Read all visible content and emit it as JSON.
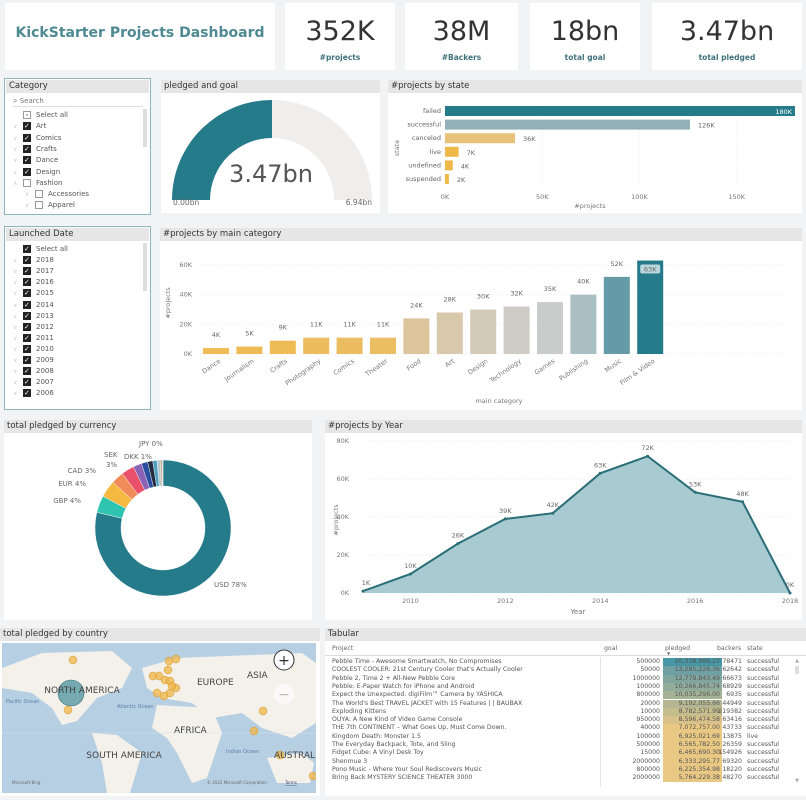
{
  "title": "KickStarter Projects Dashboard",
  "kpis": [
    {
      "value": "352K",
      "label": "#projects"
    },
    {
      "value": "38M",
      "label": "#Backers"
    },
    {
      "value": "18bn",
      "label": "total goal"
    },
    {
      "value": "3.47bn",
      "label": "total pledged"
    }
  ],
  "category_slicer": {
    "title": "Category",
    "search_placeholder": "Search",
    "items": [
      {
        "label": "Select all",
        "state": "partial"
      },
      {
        "label": "Art",
        "state": "checked"
      },
      {
        "label": "Comics",
        "state": "checked"
      },
      {
        "label": "Crafts",
        "state": "checked"
      },
      {
        "label": "Dance",
        "state": "checked"
      },
      {
        "label": "Design",
        "state": "checked"
      },
      {
        "label": "Fashion",
        "state": "unchecked"
      },
      {
        "label": "Accessories",
        "state": "unchecked"
      },
      {
        "label": "Apparel",
        "state": "unchecked"
      }
    ]
  },
  "date_slicer": {
    "title": "Launched Date",
    "items": [
      "Select all",
      "2018",
      "2017",
      "2016",
      "2015",
      "2014",
      "2013",
      "2012",
      "2011",
      "2010",
      "2009",
      "2008",
      "2007",
      "2006"
    ]
  },
  "gauge": {
    "title": "pledged and goal",
    "value_label": "3.47bn",
    "min_label": "0.00bn",
    "max_label": "6.94bn",
    "value": 3.47,
    "min": 0,
    "max": 6.94,
    "fill_color": "#267b8a",
    "track_color": "#efeeec"
  },
  "chart_data": [
    {
      "id": "state",
      "type": "bar",
      "orientation": "horizontal",
      "title": "#projects by state",
      "ylabel": "state",
      "xlabel": "#projects",
      "categories": [
        "failed",
        "successful",
        "canceled",
        "live",
        "undefined",
        "suspended"
      ],
      "values": [
        180,
        126,
        36,
        7,
        4,
        2
      ],
      "data_labels": [
        "180K",
        "126K",
        "36K",
        "7K",
        "4K",
        "2K"
      ],
      "colors": [
        "#267b8a",
        "#93b0b6",
        "#e9c27a",
        "#efb94a",
        "#efb94a",
        "#efb94a"
      ],
      "xticks": [
        "0K",
        "50K",
        "100K",
        "150K"
      ],
      "xlim": [
        0,
        180
      ],
      "unit": "K"
    },
    {
      "id": "main_category",
      "type": "bar",
      "title": "#projects by main category",
      "xlabel": "main category",
      "ylabel": "#projects",
      "categories": [
        "Dance",
        "Journalism",
        "Crafts",
        "Photography",
        "Comics",
        "Theater",
        "Food",
        "Art",
        "Design",
        "Technology",
        "Games",
        "Publishing",
        "Music",
        "Film & Video"
      ],
      "values": [
        4,
        5,
        9,
        11,
        11,
        11,
        24,
        28,
        30,
        32,
        35,
        40,
        52,
        63
      ],
      "data_labels": [
        "4K",
        "5K",
        "9K",
        "11K",
        "11K",
        "11K",
        "24K",
        "28K",
        "30K",
        "32K",
        "35K",
        "40K",
        "52K",
        "63K"
      ],
      "colors": [
        "#efbb55",
        "#efbb55",
        "#efbb55",
        "#edbc5c",
        "#ecbd60",
        "#ecbe62",
        "#dcc49c",
        "#d8c8ac",
        "#d4cab8",
        "#cfccc6",
        "#c8cccb",
        "#aabfc4",
        "#649ba6",
        "#267b8a"
      ],
      "yticks": [
        "0K",
        "20K",
        "40K",
        "60K"
      ],
      "ylim": [
        0,
        63
      ],
      "grid": true
    },
    {
      "id": "currency",
      "type": "pie",
      "donut": true,
      "title": "total pledged by currency",
      "slices": [
        {
          "name": "USD",
          "label": "USD 78%",
          "value": 78,
          "color": "#267b8a"
        },
        {
          "name": "GBP",
          "label": "GBP 4%",
          "value": 4,
          "color": "#2ec4b0"
        },
        {
          "name": "EUR",
          "label": "EUR 4%",
          "value": 4,
          "color": "#f5b841"
        },
        {
          "name": "CAD",
          "label": "CAD 3%",
          "value": 3,
          "color": "#f28b5a"
        },
        {
          "name": "SEK",
          "label": "SEK 3%",
          "value": 3,
          "color": "#e9516a"
        },
        {
          "name": "",
          "value": 2,
          "color": "#8a62b6"
        },
        {
          "name": "DKK",
          "label": "DKK 1%",
          "value": 1.5,
          "color": "#2a4fa0"
        },
        {
          "name": "",
          "value": 1.2,
          "color": "#232c3f"
        },
        {
          "name": "",
          "value": 1,
          "color": "#4e9fbe"
        },
        {
          "name": "",
          "value": 0.8,
          "color": "#b8c8cc"
        },
        {
          "name": "JPY",
          "label": "JPY 0%",
          "value": 0.3,
          "color": "#a06a3a"
        },
        {
          "name": "",
          "value": 0.3,
          "color": "#dddddd"
        }
      ]
    },
    {
      "id": "year",
      "type": "area",
      "title": "#projects by Year",
      "xlabel": "Year",
      "ylabel": "#projects",
      "x": [
        2009,
        2010,
        2011,
        2012,
        2013,
        2014,
        2015,
        2016,
        2017,
        2018
      ],
      "values": [
        1,
        10,
        26,
        39,
        42,
        63,
        72,
        53,
        48,
        0
      ],
      "data_labels": [
        "1K",
        "10K",
        "26K",
        "39K",
        "42K",
        "63K",
        "72K",
        "53K",
        "48K",
        "0K"
      ],
      "xticks": [
        "2010",
        "2012",
        "2014",
        "2016",
        "2018"
      ],
      "yticks": [
        "0K",
        "20K",
        "40K",
        "60K",
        "80K"
      ],
      "ylim": [
        0,
        80
      ],
      "xlim": [
        2009,
        2018
      ],
      "line_color": "#2a6e77",
      "fill_color": "#a8cbd1",
      "grid": true
    }
  ],
  "map": {
    "title": "total pledged by country",
    "labels": [
      "NORTH AMERICA",
      "EUROPE",
      "ASIA",
      "AFRICA",
      "SOUTH AMERICA",
      "AUSTRAL"
    ],
    "ocean_labels": [
      "Pacific Ocean",
      "Atlantic Ocean",
      "Indian Ocean"
    ],
    "attribution": "© 2022 Microsoft Corporation",
    "terms": "Terms",
    "brand": "Microsoft Bing",
    "zoom_in": "+",
    "zoom_out": "−",
    "bubble_color": "#f0b445",
    "main_bubble_color": "#5e9ea6"
  },
  "table": {
    "title": "Tabular",
    "columns": [
      "Project",
      "goal",
      "pledged",
      "backers",
      "state"
    ],
    "sort_indicator": "▼",
    "rows": [
      [
        "Pebble Time - Awesome Smartwatch, No Compromises",
        "500000",
        "20,338,986.27",
        "78471",
        "successful"
      ],
      [
        "COOLEST COOLER: 21st Century Cooler that's Actually Cooler",
        "50000",
        "13,285,226.36",
        "62642",
        "successful"
      ],
      [
        "Pebble 2, Time 2 + All-New Pebble Core",
        "1000000",
        "12,779,843.49",
        "66673",
        "successful"
      ],
      [
        "Pebble: E-Paper Watch for iPhone and Android",
        "100000",
        "10,266,845.74",
        "68929",
        "successful"
      ],
      [
        "Expect the Unexpected. digiFilm™ Camera by YASHICA",
        "800000",
        "10,035,296.00",
        "6935",
        "successful"
      ],
      [
        "The World's Best TRAVEL JACKET with 15 Features | | BAUBAX",
        "20000",
        "9,192,055.66",
        "44949",
        "successful"
      ],
      [
        "Exploding Kittens",
        "10000",
        "8,782,571.99",
        "219382",
        "successful"
      ],
      [
        "OUYA: A New Kind of Video Game Console",
        "950000",
        "8,596,474.58",
        "63416",
        "successful"
      ],
      [
        "THE 7th CONTINENT – What Goes Up, Must Come Down.",
        "40000",
        "7,072,757.00",
        "43733",
        "successful"
      ],
      [
        "Kingdom Death: Monster 1.5",
        "100000",
        "6,925,021.69",
        "13875",
        "live"
      ],
      [
        "The Everyday Backpack, Tote, and Sling",
        "500000",
        "6,565,782.50",
        "26359",
        "successful"
      ],
      [
        "Fidget Cube: A Vinyl Desk Toy",
        "15000",
        "6,465,690.30",
        "154926",
        "successful"
      ],
      [
        "Shenmue 3",
        "2000000",
        "6,333,295.77",
        "69320",
        "successful"
      ],
      [
        "Pono Music - Where Your Soul Rediscovers Music",
        "800000",
        "6,225,354.98",
        "18220",
        "successful"
      ],
      [
        "Bring Back MYSTERY SCIENCE THEATER 3000",
        "2000000",
        "5,764,229.38",
        "48270",
        "successful"
      ]
    ]
  }
}
